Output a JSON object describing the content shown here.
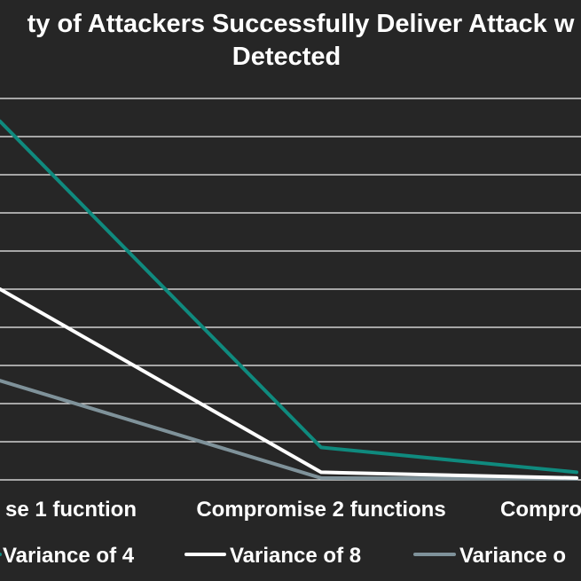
{
  "chart_data": {
    "type": "line",
    "title_lines": [
      "ty of Attackers Successfully Deliver Attack w",
      "Detected"
    ],
    "categories": [
      "se 1 fucntion",
      "Compromise 2 functions",
      "Compro"
    ],
    "ylim": [
      0,
      0.1
    ],
    "grid": true,
    "legend_position": "bottom",
    "series": [
      {
        "name": "Variance of 4",
        "color": "#0f8a7e",
        "values": [
          0.094,
          0.0085,
          0.002
        ]
      },
      {
        "name": "Variance of 8",
        "color": "#ffffff",
        "values": [
          0.05,
          0.002,
          0.0005
        ]
      },
      {
        "name": "Variance o",
        "color": "#7f929a",
        "values": [
          0.026,
          0.0005,
          0.0003
        ]
      }
    ]
  }
}
